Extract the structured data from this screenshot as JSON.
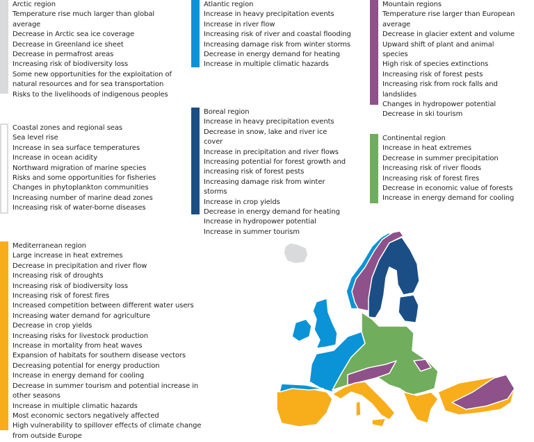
{
  "colors": {
    "arctic": "#d9dadc",
    "atlantic": "#0a93d6",
    "mountain": "#8e5189",
    "coastal_border": "#d9dadc",
    "boreal": "#1b4e84",
    "continental": "#70ad5c",
    "mediterranean": "#f8ad1a"
  },
  "regions": {
    "arctic": {
      "title": "Arctic region",
      "items": [
        "Temperature rise much larger than global average",
        "Decrease in Arctic sea ice coverage",
        "Decrease in Greenland ice sheet",
        "Decrease in permafrost areas",
        "Increasing risk of biodiversity loss",
        "Some new opportunities for the exploitation of natural resources and for sea transportation",
        "Risks to the livelihoods of indigenous peoples"
      ]
    },
    "atlantic": {
      "title": "Atlantic region",
      "items": [
        "Increase in heavy precipitation events",
        "Increase in river flow",
        "Increasing risk of river and coastal flooding",
        "Increasing damage risk from winter storms",
        "Decrease in energy demand for heating",
        "Increase in multiple climatic hazards"
      ]
    },
    "mountain": {
      "title": "Mountain regions",
      "items": [
        "Temperature rise larger than European average",
        "Decrease in glacier extent and volume",
        "Upward shift of plant and animal species",
        "High risk of species extinctions",
        "Increasing risk of forest pests",
        "Increasing risk from rock falls and landslides",
        "Changes in hydropower potential",
        "Decrease in ski tourism"
      ]
    },
    "coastal": {
      "title": "Coastal zones and regional seas",
      "items": [
        "Sea level rise",
        "Increase in sea surface temperatures",
        "Increase in ocean acidity",
        "Northward migration of marine species",
        "Risks and some opportunities for fisheries",
        "Changes in phytoplankton communities",
        "Increasing number of marine dead zones",
        "Increasing risk of water-borne diseases"
      ]
    },
    "boreal": {
      "title": "Boreal region",
      "items": [
        "Increase in heavy precipitation events",
        "Decrease in snow, lake and river ice cover",
        "Increase in precipitation and river flows",
        "Increasing potential for forest growth and increasing risk of forest pests",
        "Increasing damage risk from winter storms",
        "Increase in crop yields",
        "Decrease in energy demand for heating",
        "Increase in hydropower potential",
        "Increase in summer tourism"
      ]
    },
    "continental": {
      "title": "Continental region",
      "items": [
        "Increase in heat extremes",
        "Decrease in summer precipitation",
        "Increasing risk of river floods",
        "Increasing risk of forest fires",
        "Decrease in economic value of forests",
        "Increase in energy demand for cooling"
      ]
    },
    "mediterranean": {
      "title": "Mediterranean region",
      "items": [
        "Large increase in heat extremes",
        "Decrease in precipitation and river flow",
        "Increasing risk of droughts",
        "Increasing risk of biodiversity loss",
        "Increasing risk of forest fires",
        "Increased competition between different water users",
        "Increasing water demand for agriculture",
        "Decrease in crop yields",
        "Increasing risks for livestock production",
        "Increase in mortality from heat waves",
        "Expansion of habitats for southern disease vectors",
        "Decreasing potential for energy production",
        "Increase in energy demand for cooling",
        "Decrease in summer tourism and potential increase in other seasons",
        "Increase in multiple climatic hazards",
        "Most economic sectors negatively affected",
        "High vulnerability to spillover effects of climate change from outside Europe"
      ]
    }
  }
}
